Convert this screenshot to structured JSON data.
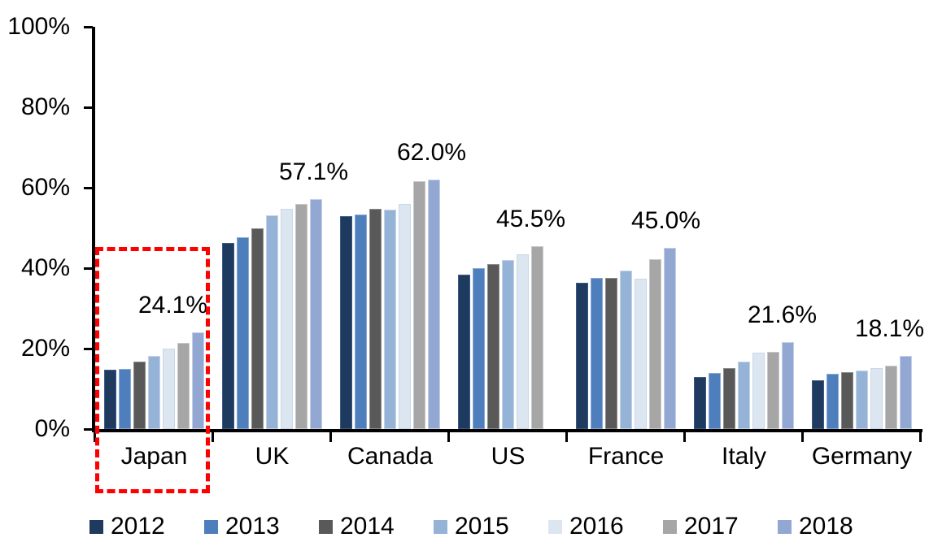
{
  "chart_data": {
    "type": "bar",
    "title": "",
    "xlabel": "",
    "ylabel": "",
    "categories": [
      "Japan",
      "UK",
      "Canada",
      "US",
      "France",
      "Italy",
      "Germany"
    ],
    "series": [
      {
        "name": "2012",
        "color": "#1F3A5F",
        "border": "#3D5A86",
        "values": [
          14.7,
          46.3,
          52.9,
          38.3,
          36.4,
          13.0,
          12.2
        ]
      },
      {
        "name": "2013",
        "color": "#4E7EBC",
        "border": "#88AAD6",
        "values": [
          15.0,
          47.7,
          53.3,
          40.0,
          37.6,
          13.9,
          13.7
        ]
      },
      {
        "name": "2014",
        "color": "#595959",
        "border": "#8C8C8C",
        "values": [
          16.7,
          50.0,
          54.8,
          41.0,
          37.5,
          15.2,
          14.1
        ]
      },
      {
        "name": "2015",
        "color": "#95B3D7",
        "border": "#C2D3E9",
        "values": [
          18.2,
          53.2,
          54.5,
          42.1,
          39.3,
          16.8,
          14.5
        ]
      },
      {
        "name": "2016",
        "color": "#DCE6F1",
        "border": "#C9D7EA",
        "values": [
          20.0,
          54.8,
          56.0,
          43.5,
          37.4,
          18.9,
          15.2
        ]
      },
      {
        "name": "2017",
        "color": "#A6A6A6",
        "border": "#C8C8C8",
        "values": [
          21.4,
          55.9,
          61.6,
          45.5,
          42.2,
          19.1,
          15.7
        ]
      },
      {
        "name": "2018",
        "color": "#92A7D1",
        "border": "#C5CFE9",
        "values": [
          24.1,
          57.1,
          62.0,
          null,
          45.0,
          21.6,
          18.1
        ]
      }
    ],
    "data_labels": [
      "24.1%",
      "57.1%",
      "62.0%",
      "45.5%",
      "45.0%",
      "21.6%",
      "18.1%"
    ],
    "y_ticks": [
      "100%",
      "80%",
      "60%",
      "40%",
      "20%",
      "0%"
    ],
    "ylim": [
      0,
      100
    ],
    "grid": false,
    "legend_position": "bottom",
    "legend_items": [
      "2012",
      "2013",
      "2014",
      "2015",
      "2016",
      "2017",
      "2018"
    ],
    "highlight": {
      "category": "Japan",
      "shape": "dashed-rectangle",
      "color": "#FF0000"
    },
    "layout": {
      "label_dx": [
        -31,
        -3,
        -3,
        -8,
        -5,
        -7,
        -20
      ]
    }
  }
}
